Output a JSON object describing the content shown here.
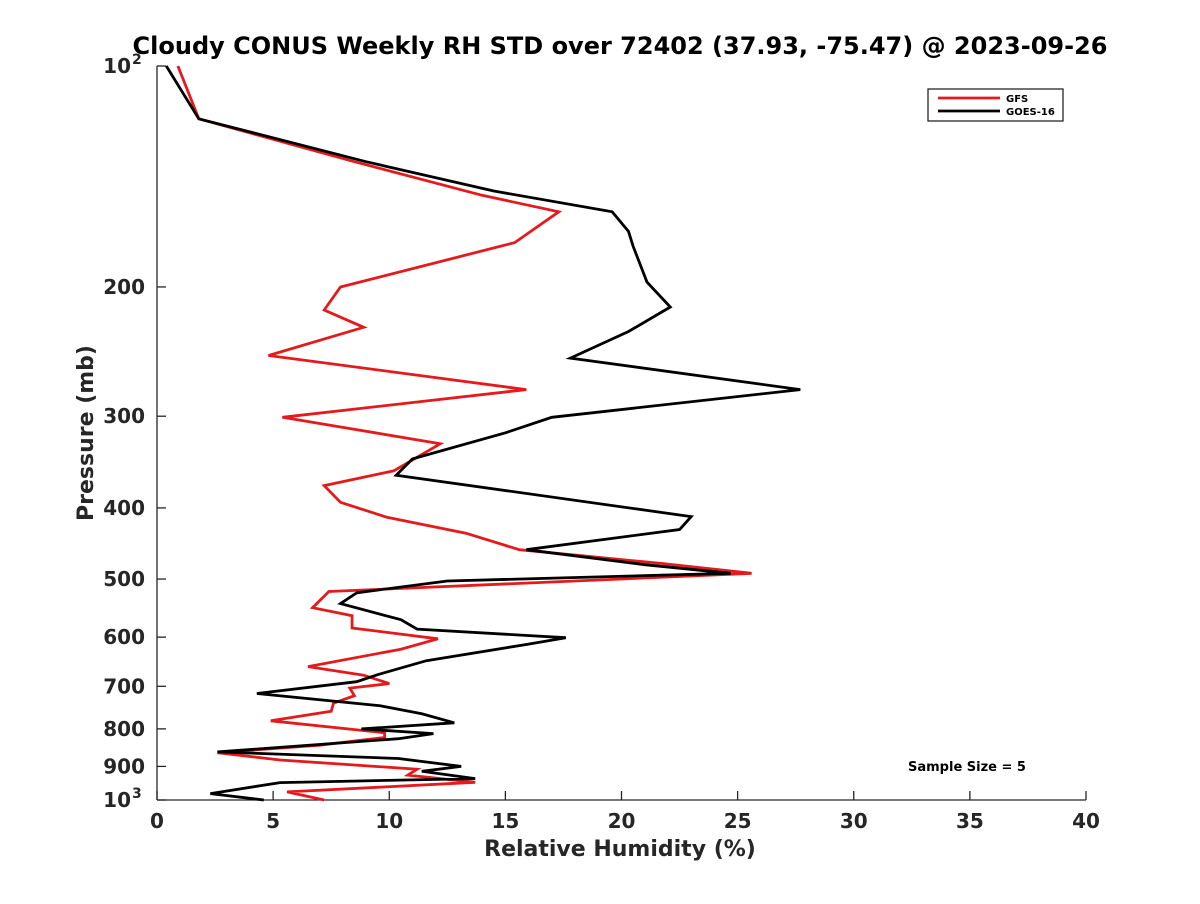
{
  "chart_data": {
    "type": "line",
    "title": "Cloudy CONUS Weekly RH STD over 72402 (37.93, -75.47) @ 2023-09-26",
    "xlabel": "Relative Humidity (%)",
    "ylabel": "Pressure (mb)",
    "xlim": [
      0,
      40
    ],
    "ylim": [
      100,
      1000
    ],
    "yscale": "log",
    "y_reversed": true,
    "x_ticks": [
      "0",
      "5",
      "10",
      "15",
      "20",
      "25",
      "30",
      "35",
      "40"
    ],
    "y_ticks": [
      {
        "value": 100,
        "base": "10",
        "exp": "2"
      },
      {
        "value": 200,
        "base": "200",
        "exp": ""
      },
      {
        "value": 300,
        "base": "300",
        "exp": ""
      },
      {
        "value": 400,
        "base": "400",
        "exp": ""
      },
      {
        "value": 500,
        "base": "500",
        "exp": ""
      },
      {
        "value": 600,
        "base": "600",
        "exp": ""
      },
      {
        "value": 700,
        "base": "700",
        "exp": ""
      },
      {
        "value": 800,
        "base": "800",
        "exp": ""
      },
      {
        "value": 900,
        "base": "900",
        "exp": ""
      },
      {
        "value": 1000,
        "base": "10",
        "exp": "3"
      }
    ],
    "grid": false,
    "legend": {
      "position": "top-right"
    },
    "annotation": "Sample Size = 5",
    "series": [
      {
        "name": "GFS",
        "color": "#e41a1c",
        "points": [
          [
            0.9,
            100
          ],
          [
            1.8,
            118
          ],
          [
            8.5,
            135
          ],
          [
            14.0,
            150
          ],
          [
            17.3,
            158
          ],
          [
            15.4,
            174
          ],
          [
            7.9,
            200
          ],
          [
            7.2,
            215
          ],
          [
            8.9,
            227
          ],
          [
            4.8,
            248
          ],
          [
            15.9,
            276
          ],
          [
            5.4,
            301
          ],
          [
            12.2,
            327
          ],
          [
            10.2,
            356
          ],
          [
            7.2,
            373
          ],
          [
            7.9,
            393
          ],
          [
            9.9,
            412
          ],
          [
            13.3,
            433
          ],
          [
            15.6,
            456
          ],
          [
            21.7,
            476
          ],
          [
            25.6,
            491
          ],
          [
            20.0,
            500
          ],
          [
            7.4,
            520
          ],
          [
            6.7,
            547
          ],
          [
            8.4,
            561
          ],
          [
            8.4,
            583
          ],
          [
            12.1,
            603
          ],
          [
            10.5,
            623
          ],
          [
            6.5,
            658
          ],
          [
            8.9,
            676
          ],
          [
            10.0,
            694
          ],
          [
            8.3,
            704
          ],
          [
            8.5,
            721
          ],
          [
            7.6,
            738
          ],
          [
            7.5,
            757
          ],
          [
            4.9,
            780
          ],
          [
            9.8,
            810
          ],
          [
            9.8,
            822
          ],
          [
            7.0,
            842
          ],
          [
            2.6,
            862
          ],
          [
            5.3,
            882
          ],
          [
            11.2,
            908
          ],
          [
            10.8,
            925
          ],
          [
            13.7,
            946
          ],
          [
            5.6,
            975
          ],
          [
            7.2,
            1000
          ]
        ]
      },
      {
        "name": "GOES-16",
        "color": "#000000",
        "points": [
          [
            0.4,
            100
          ],
          [
            1.8,
            118
          ],
          [
            9.0,
            135
          ],
          [
            14.5,
            148
          ],
          [
            19.6,
            158
          ],
          [
            20.3,
            168
          ],
          [
            20.5,
            176
          ],
          [
            21.1,
            197
          ],
          [
            22.1,
            213
          ],
          [
            20.3,
            230
          ],
          [
            17.8,
            250
          ],
          [
            27.7,
            276
          ],
          [
            17.0,
            301
          ],
          [
            15.0,
            316
          ],
          [
            11.0,
            343
          ],
          [
            10.3,
            361
          ],
          [
            23.0,
            411
          ],
          [
            22.5,
            428
          ],
          [
            15.9,
            456
          ],
          [
            21.0,
            478
          ],
          [
            24.7,
            491
          ],
          [
            12.5,
            503
          ],
          [
            8.6,
            522
          ],
          [
            7.9,
            540
          ],
          [
            10.5,
            568
          ],
          [
            11.2,
            585
          ],
          [
            17.6,
            601
          ],
          [
            15.9,
            614
          ],
          [
            11.6,
            646
          ],
          [
            9.5,
            675
          ],
          [
            8.6,
            690
          ],
          [
            4.3,
            716
          ],
          [
            9.6,
            744
          ],
          [
            11.4,
            763
          ],
          [
            12.8,
            785
          ],
          [
            8.8,
            800
          ],
          [
            11.9,
            812
          ],
          [
            10.4,
            825
          ],
          [
            2.6,
            860
          ],
          [
            10.4,
            878
          ],
          [
            13.1,
            900
          ],
          [
            11.4,
            914
          ],
          [
            13.7,
            935
          ],
          [
            5.3,
            947
          ],
          [
            2.3,
            980
          ],
          [
            4.6,
            1000
          ]
        ]
      }
    ]
  }
}
